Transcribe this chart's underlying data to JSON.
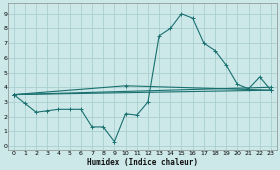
{
  "xlabel": "Humidex (Indice chaleur)",
  "background_color": "#cce8e8",
  "grid_color": "#aad0d0",
  "line_color": "#1a7070",
  "xlim": [
    -0.5,
    23.5
  ],
  "ylim": [
    -0.3,
    9.7
  ],
  "xticks": [
    0,
    1,
    2,
    3,
    4,
    5,
    6,
    7,
    8,
    9,
    10,
    11,
    12,
    13,
    14,
    15,
    16,
    17,
    18,
    19,
    20,
    21,
    22,
    23
  ],
  "yticks": [
    0,
    1,
    2,
    3,
    4,
    5,
    6,
    7,
    8,
    9
  ],
  "main_x": [
    0,
    1,
    2,
    3,
    4,
    5,
    6,
    7,
    8,
    9,
    10,
    11,
    12,
    13,
    14,
    15,
    16,
    17,
    18,
    19,
    20,
    21,
    22,
    23
  ],
  "main_y": [
    3.5,
    2.9,
    2.3,
    2.4,
    2.5,
    2.5,
    2.5,
    1.3,
    1.3,
    0.3,
    2.2,
    2.1,
    3.0,
    7.5,
    8.0,
    9.0,
    8.7,
    7.0,
    6.5,
    5.5,
    4.2,
    3.9,
    4.7,
    3.8
  ],
  "trend1_x": [
    0,
    23
  ],
  "trend1_y": [
    3.5,
    3.8
  ],
  "trend2_x": [
    0,
    23
  ],
  "trend2_y": [
    3.5,
    4.0
  ],
  "trend3_x": [
    0,
    10,
    23
  ],
  "trend3_y": [
    3.5,
    4.1,
    3.8
  ]
}
